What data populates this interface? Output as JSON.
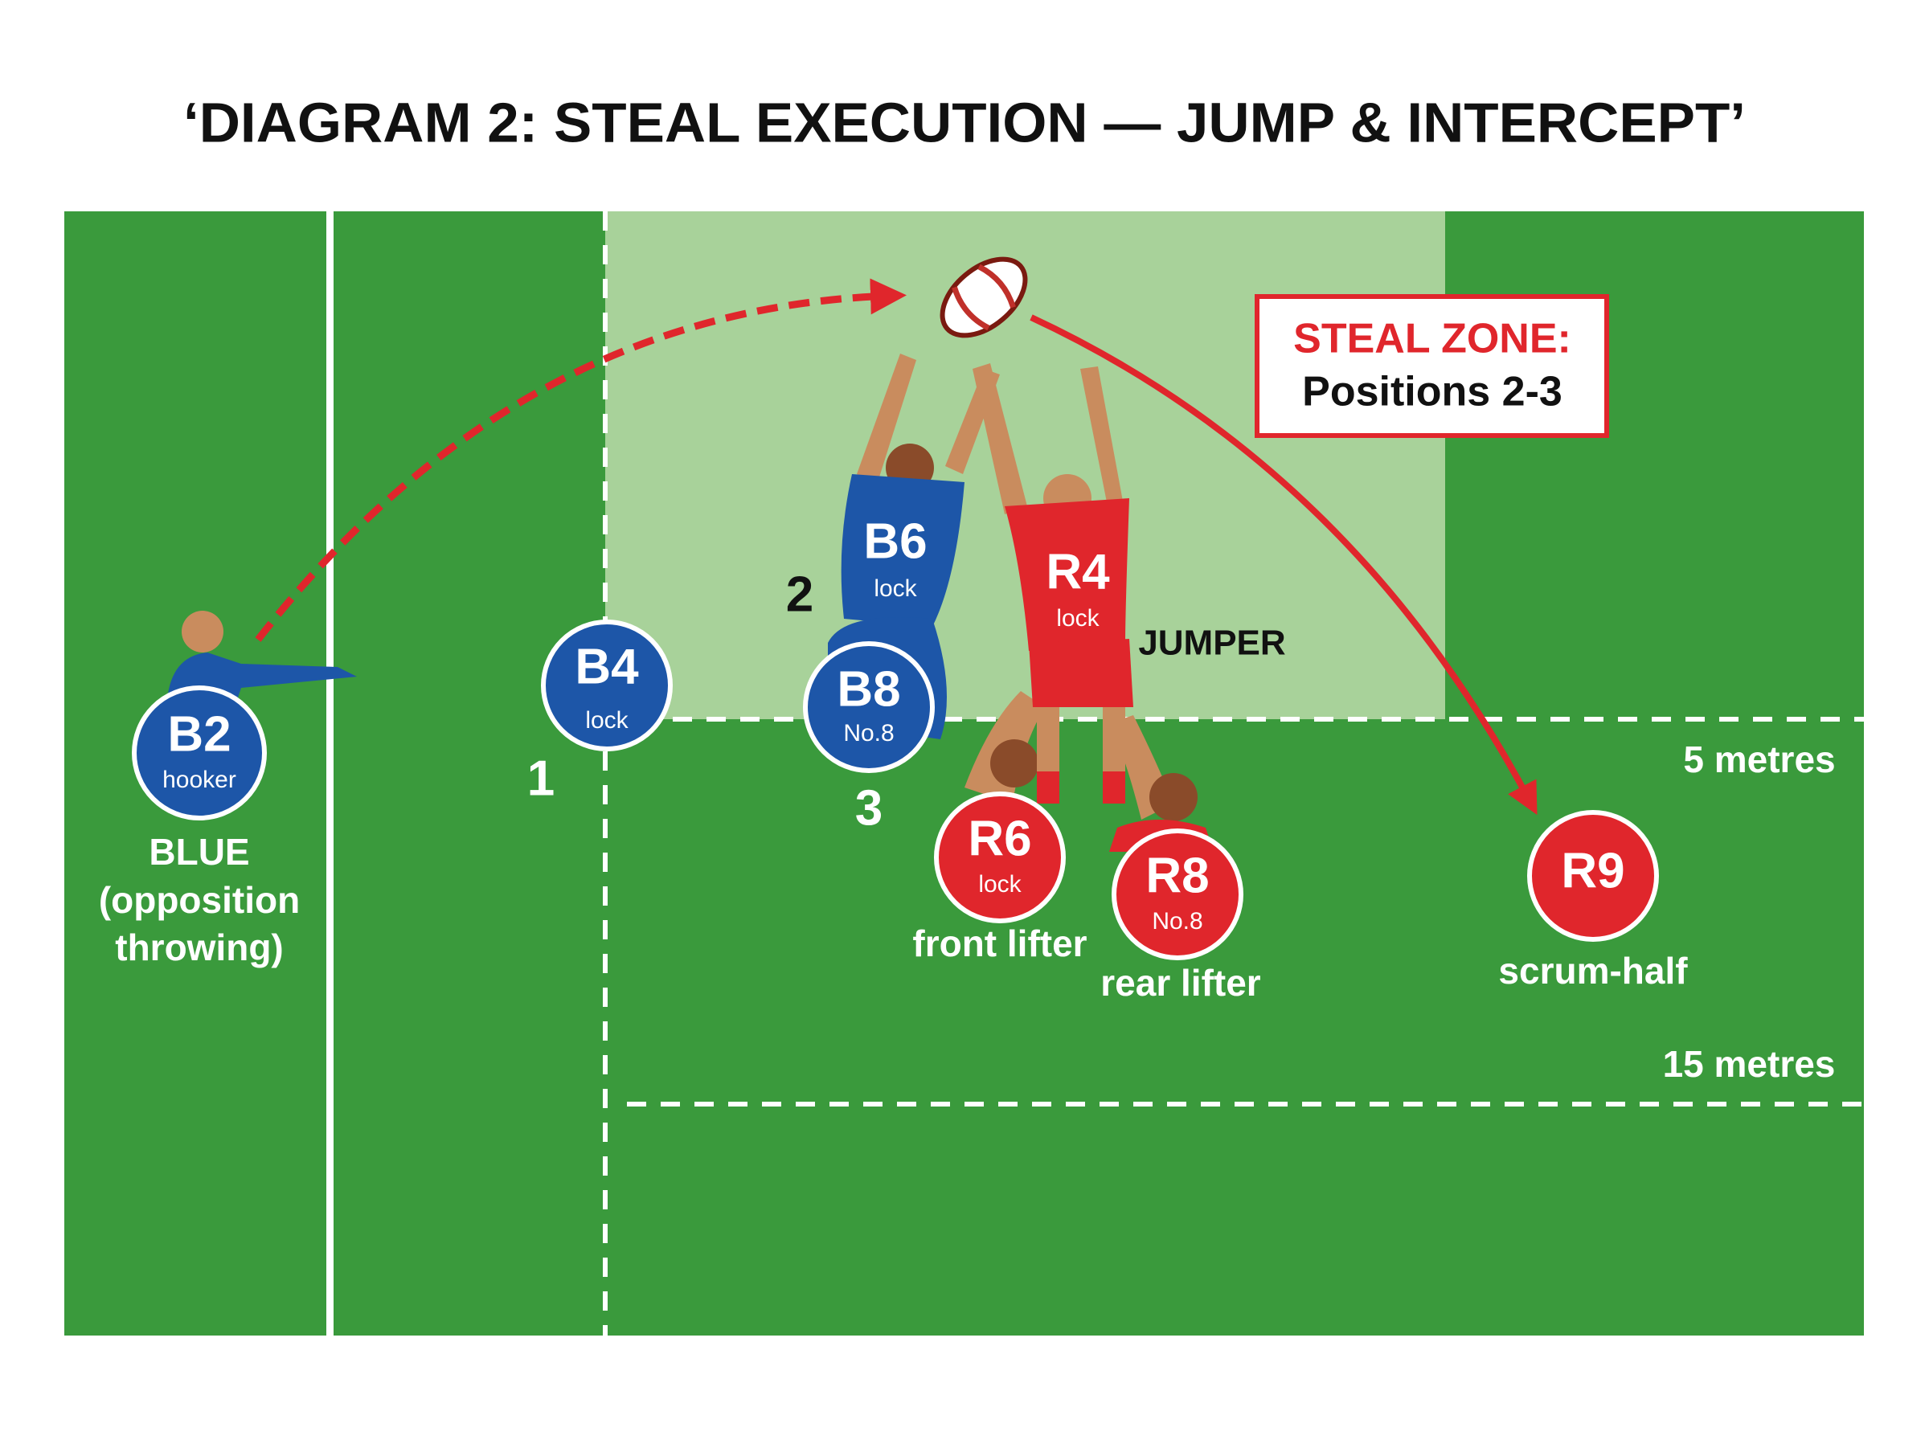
{
  "title": "‘DIAGRAM 2: STEAL EXECUTION — JUMP & INTERCEPT’",
  "field": {
    "lines": [
      {
        "label": "5 metres"
      },
      {
        "label": "15 metres"
      }
    ]
  },
  "callout": {
    "title": "STEAL ZONE:",
    "text": "Positions 2-3"
  },
  "positions": [
    "1",
    "2",
    "3"
  ],
  "players": [
    {
      "id": "B2",
      "role": "hooker",
      "caption": [
        "BLUE",
        "(opposition",
        "throwing)"
      ]
    },
    {
      "id": "B4",
      "role": "lock"
    },
    {
      "id": "B6",
      "role": "lock"
    },
    {
      "id": "B8",
      "role": "No.8"
    },
    {
      "id": "R4",
      "role": "lock",
      "caption": [
        "JUMPER"
      ]
    },
    {
      "id": "R6",
      "role": "lock",
      "caption": [
        "front lifter"
      ]
    },
    {
      "id": "R8",
      "role": "No.8",
      "caption": [
        "rear lifter"
      ]
    },
    {
      "id": "R9",
      "caption": [
        "scrum-half"
      ]
    }
  ]
}
